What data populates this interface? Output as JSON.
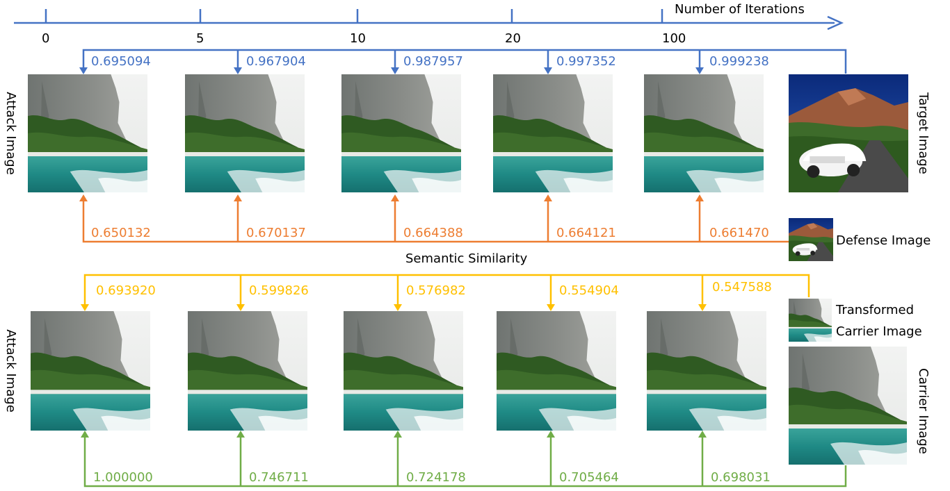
{
  "timeline": {
    "title": "Number of Iterations",
    "ticks": [
      "0",
      "5",
      "10",
      "20",
      "100"
    ]
  },
  "labels": {
    "attack_image_top": "Attack Image",
    "attack_image_bottom": "Attack Image",
    "target_image": "Target Image",
    "defense_image": "Defense Image",
    "semantic_similarity": "Semantic Similarity",
    "transformed_carrier_1": "Transformed",
    "transformed_carrier_2": "Carrier Image",
    "carrier_image": "Carrier Image"
  },
  "scores": {
    "target_blue": [
      "0.695094",
      "0.967904",
      "0.987957",
      "0.997352",
      "0.999238"
    ],
    "defense_orange": [
      "0.650132",
      "0.670137",
      "0.664388",
      "0.664121",
      "0.661470"
    ],
    "transformed_yellow": [
      "0.693920",
      "0.599826",
      "0.576982",
      "0.554904",
      "0.547588"
    ],
    "carrier_green": [
      "1.000000",
      "0.746711",
      "0.724178",
      "0.705464",
      "0.698031"
    ]
  },
  "colors": {
    "blue": "#4472C4",
    "orange": "#ED7D31",
    "yellow": "#FFC000",
    "green": "#70AD47"
  }
}
